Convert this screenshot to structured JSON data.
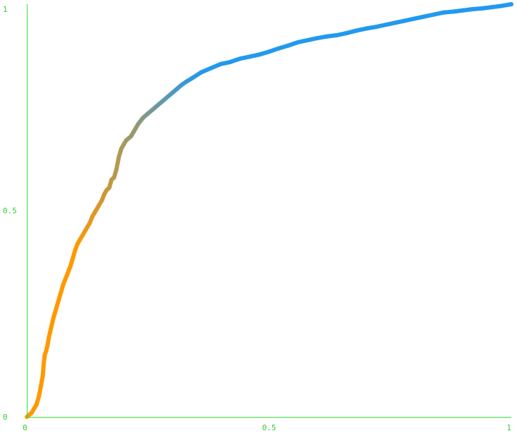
{
  "chart_data": {
    "type": "line",
    "title": "",
    "xlabel": "",
    "ylabel": "",
    "xlim": [
      0,
      1
    ],
    "ylim": [
      0,
      1
    ],
    "grid": false,
    "legend": "none",
    "x_ticks": [
      {
        "value": 0,
        "label": "0"
      },
      {
        "value": 0.5,
        "label": "0.5"
      },
      {
        "value": 1,
        "label": "1"
      }
    ],
    "y_ticks": [
      {
        "value": 0,
        "label": "0"
      },
      {
        "value": 0.5,
        "label": "0.5"
      },
      {
        "value": 1,
        "label": "1"
      }
    ],
    "colors": {
      "axis": "#33dd33",
      "tick_text": "#33cc33",
      "line_start": "#ff9900",
      "line_end": "#2299ee"
    },
    "series": [
      {
        "x": [
          0.0,
          0.005,
          0.01,
          0.015,
          0.02,
          0.025,
          0.03,
          0.033,
          0.035,
          0.037,
          0.04,
          0.043,
          0.046,
          0.05,
          0.055,
          0.06,
          0.065,
          0.07,
          0.075,
          0.08,
          0.085,
          0.09,
          0.095,
          0.1,
          0.105,
          0.11,
          0.115,
          0.12,
          0.125,
          0.13,
          0.135,
          0.14,
          0.145,
          0.15,
          0.155,
          0.16,
          0.165,
          0.17,
          0.175,
          0.18,
          0.185,
          0.19,
          0.195,
          0.2,
          0.205,
          0.21,
          0.215,
          0.22,
          0.23,
          0.24,
          0.25,
          0.26,
          0.27,
          0.28,
          0.29,
          0.3,
          0.31,
          0.32,
          0.33,
          0.34,
          0.36,
          0.38,
          0.4,
          0.42,
          0.44,
          0.46,
          0.48,
          0.5,
          0.52,
          0.54,
          0.56,
          0.58,
          0.6,
          0.62,
          0.64,
          0.66,
          0.68,
          0.7,
          0.72,
          0.74,
          0.76,
          0.78,
          0.8,
          0.82,
          0.84,
          0.86,
          0.88,
          0.9,
          0.92,
          0.94,
          0.96,
          0.98,
          1.0
        ],
        "y": [
          0.0,
          0.005,
          0.01,
          0.02,
          0.03,
          0.05,
          0.08,
          0.1,
          0.13,
          0.15,
          0.16,
          0.175,
          0.195,
          0.215,
          0.24,
          0.26,
          0.28,
          0.3,
          0.32,
          0.335,
          0.35,
          0.365,
          0.385,
          0.405,
          0.42,
          0.43,
          0.44,
          0.45,
          0.46,
          0.47,
          0.485,
          0.495,
          0.505,
          0.515,
          0.525,
          0.54,
          0.55,
          0.555,
          0.575,
          0.58,
          0.6,
          0.63,
          0.65,
          0.66,
          0.67,
          0.675,
          0.68,
          0.69,
          0.71,
          0.725,
          0.735,
          0.745,
          0.755,
          0.765,
          0.775,
          0.785,
          0.795,
          0.805,
          0.813,
          0.82,
          0.835,
          0.845,
          0.855,
          0.86,
          0.868,
          0.873,
          0.878,
          0.885,
          0.893,
          0.9,
          0.908,
          0.913,
          0.918,
          0.922,
          0.925,
          0.93,
          0.936,
          0.941,
          0.945,
          0.95,
          0.955,
          0.96,
          0.965,
          0.97,
          0.975,
          0.98,
          0.982,
          0.985,
          0.988,
          0.99,
          0.993,
          0.996,
          1.0
        ]
      }
    ]
  }
}
